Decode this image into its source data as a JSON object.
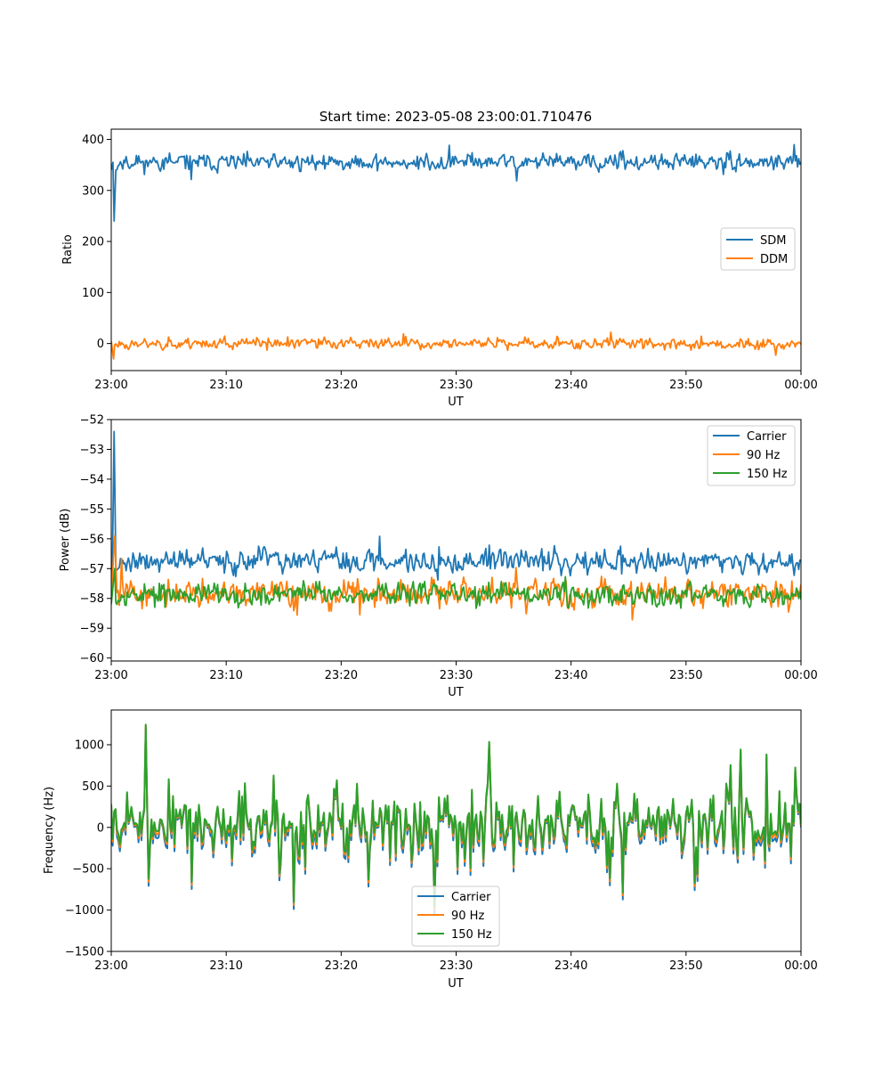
{
  "chart_data": [
    {
      "type": "line",
      "title": "Start time: 2023-05-08 23:00:01.710476",
      "xlabel": "UT",
      "ylabel": "Ratio",
      "xlim": [
        0,
        60
      ],
      "ylim": [
        -53,
        420
      ],
      "xticks": [
        0,
        10,
        20,
        30,
        40,
        50,
        60
      ],
      "xtick_labels": [
        "23:00",
        "23:10",
        "23:20",
        "23:30",
        "23:40",
        "23:50",
        "00:00"
      ],
      "yticks": [
        0,
        100,
        200,
        300,
        400
      ],
      "ytick_labels": [
        "0",
        "100",
        "200",
        "300",
        "400"
      ],
      "legend": {
        "placement": "center-right",
        "entries": [
          "SDM",
          "DDM"
        ]
      },
      "series": [
        {
          "name": "SDM",
          "color": "#1f77b4",
          "start": [
            [
              0,
              340
            ],
            [
              0.15,
              355
            ],
            [
              0.25,
              240
            ],
            [
              0.4,
              340
            ]
          ],
          "baseline": 355,
          "amplitude": 15,
          "points": 600,
          "seed": 11
        },
        {
          "name": "DDM",
          "color": "#ff7f0e",
          "start": [
            [
              0,
              5
            ],
            [
              0.2,
              -30
            ]
          ],
          "baseline": 0,
          "amplitude": 10,
          "points": 600,
          "seed": 23
        }
      ]
    },
    {
      "type": "line",
      "title": "",
      "xlabel": "UT",
      "ylabel": "Power (dB)",
      "xlim": [
        0,
        60
      ],
      "ylim": [
        -60.1,
        -52
      ],
      "xticks": [
        0,
        10,
        20,
        30,
        40,
        50,
        60
      ],
      "xtick_labels": [
        "23:00",
        "23:10",
        "23:20",
        "23:30",
        "23:40",
        "23:50",
        "00:00"
      ],
      "yticks": [
        -60,
        -59,
        -58,
        -57,
        -56,
        -55,
        -54,
        -53,
        -52
      ],
      "ytick_labels": [
        "−60",
        "−59",
        "−58",
        "−57",
        "−56",
        "−55",
        "−54",
        "−53",
        "−52"
      ],
      "legend": {
        "placement": "top-right",
        "entries": [
          "Carrier",
          "90 Hz",
          "150 Hz"
        ]
      },
      "series": [
        {
          "name": "Carrier",
          "color": "#1f77b4",
          "start": [
            [
              0,
              -57.6
            ],
            [
              0.1,
              -56.8
            ],
            [
              0.25,
              -52.4
            ],
            [
              0.4,
              -57.0
            ]
          ],
          "baseline": -56.75,
          "amplitude": 0.35,
          "points": 600,
          "seed": 37
        },
        {
          "name": "90 Hz",
          "color": "#ff7f0e",
          "start": [
            [
              0,
              -58.0
            ],
            [
              0.3,
              -55.9
            ],
            [
              0.5,
              -57.8
            ]
          ],
          "baseline": -57.85,
          "amplitude": 0.4,
          "points": 600,
          "seed": 41
        },
        {
          "name": "150 Hz",
          "color": "#2ca02c",
          "start": [
            [
              0,
              -58.2
            ],
            [
              0.3,
              -57.0
            ]
          ],
          "baseline": -57.85,
          "amplitude": 0.35,
          "points": 600,
          "seed": 53
        }
      ]
    },
    {
      "type": "line",
      "title": "",
      "xlabel": "UT",
      "ylabel": "Frequency (Hz)",
      "xlim": [
        0,
        60
      ],
      "ylim": [
        -1500,
        1420
      ],
      "xticks": [
        0,
        10,
        20,
        30,
        40,
        50,
        60
      ],
      "xtick_labels": [
        "23:00",
        "23:10",
        "23:20",
        "23:30",
        "23:40",
        "23:50",
        "00:00"
      ],
      "yticks": [
        -1500,
        -1000,
        -500,
        0,
        500,
        1000
      ],
      "ytick_labels": [
        "−1500",
        "−1000",
        "−500",
        "0",
        "500",
        "1000"
      ],
      "legend": {
        "placement": "bottom-center",
        "entries": [
          "Carrier",
          "90 Hz",
          "150 Hz"
        ]
      },
      "series": [
        {
          "name": "Carrier",
          "color": "#1f77b4",
          "offset": -60
        },
        {
          "name": "90 Hz",
          "color": "#ff7f0e",
          "offset": -25
        },
        {
          "name": "150 Hz",
          "color": "#2ca02c",
          "offset": 0
        }
      ],
      "base": {
        "baseline": 50,
        "amplitude": 330,
        "points": 480,
        "seed": 7
      }
    }
  ]
}
